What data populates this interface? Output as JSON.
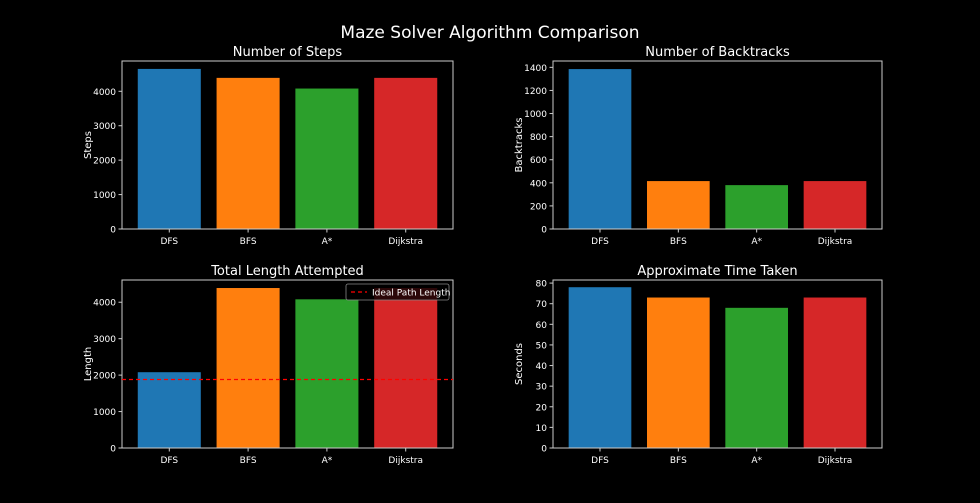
{
  "figure": {
    "title": "Maze Solver Algorithm Comparison"
  },
  "colors": {
    "background": "#000000",
    "text": "#ffffff",
    "axes": "#cccccc",
    "bars": [
      "#1f77b4",
      "#ff7f0e",
      "#2ca02c",
      "#d62728"
    ],
    "ideal_line": "#ff0000"
  },
  "chart_data": [
    {
      "type": "bar",
      "title": "Number of Steps",
      "xlabel": "",
      "ylabel": "Steps",
      "categories": [
        "DFS",
        "BFS",
        "A*",
        "Dijkstra"
      ],
      "values": [
        4650,
        4390,
        4080,
        4390
      ],
      "ylim": [
        0,
        4880
      ],
      "yticks": [
        0,
        1000,
        2000,
        3000,
        4000
      ],
      "grid": false
    },
    {
      "type": "bar",
      "title": "Number of Backtracks",
      "xlabel": "",
      "ylabel": "Backtracks",
      "categories": [
        "DFS",
        "BFS",
        "A*",
        "Dijkstra"
      ],
      "values": [
        1385,
        415,
        380,
        415
      ],
      "ylim": [
        0,
        1455
      ],
      "yticks": [
        0,
        200,
        400,
        600,
        800,
        1000,
        1200,
        1400
      ],
      "grid": false
    },
    {
      "type": "bar",
      "title": "Total Length Attempted",
      "xlabel": "",
      "ylabel": "Length",
      "categories": [
        "DFS",
        "BFS",
        "A*",
        "Dijkstra"
      ],
      "values": [
        2080,
        4390,
        4080,
        4390
      ],
      "ylim": [
        0,
        4610
      ],
      "yticks": [
        0,
        1000,
        2000,
        3000,
        4000
      ],
      "grid": false,
      "reference_line": {
        "label": "Ideal Path Length",
        "value": 1880
      },
      "legend": "top-right"
    },
    {
      "type": "bar",
      "title": "Approximate Time Taken",
      "xlabel": "",
      "ylabel": "Seconds",
      "categories": [
        "DFS",
        "BFS",
        "A*",
        "Dijkstra"
      ],
      "values": [
        78,
        73,
        68,
        73
      ],
      "ylim": [
        0,
        81.5
      ],
      "yticks": [
        0,
        10,
        20,
        30,
        40,
        50,
        60,
        70,
        80
      ],
      "grid": false
    }
  ]
}
